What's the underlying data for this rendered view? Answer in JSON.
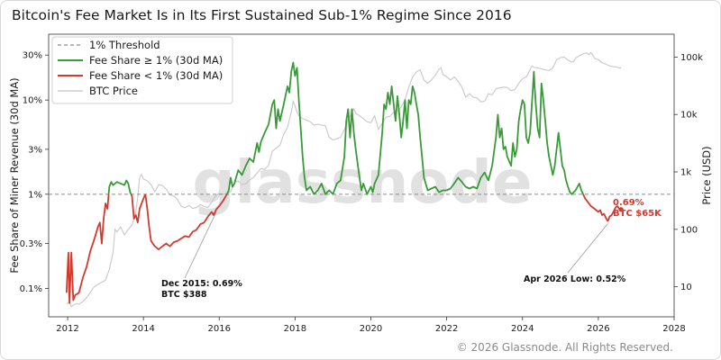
{
  "title": "Bitcoin's Fee Market Is in Its First Sustained Sub-1% Regime Since 2016",
  "footer": "© 2026 Glassnode. All Rights Reserved.",
  "watermark": "glassnode",
  "colors": {
    "green": "#3a9a3a",
    "red": "#d13a2f",
    "price": "#c8c8c8",
    "threshold": "#8c8c8c"
  },
  "chart_data": {
    "type": "line",
    "title": "Bitcoin's Fee Market Is in Its First Sustained Sub-1% Regime Since 2016",
    "xlabel": "",
    "ylabel": "Fee Share of Miner Revenue (30d MA)",
    "ylabel_right": "Price (USD)",
    "xlim": [
      2011.5,
      2028.0
    ],
    "ylim_left": [
      0.05,
      50
    ],
    "ylim_right": [
      3,
      250000
    ],
    "y_scale": "log",
    "grid": false,
    "legend_position": "top-left",
    "x_ticks": [
      "2012",
      "2014",
      "2016",
      "2018",
      "2020",
      "2022",
      "2024",
      "2026",
      "2028"
    ],
    "y_ticks_left": [
      {
        "value": 0.1,
        "label": "0.1%"
      },
      {
        "value": 0.3,
        "label": "0.3%"
      },
      {
        "value": 1,
        "label": "1%"
      },
      {
        "value": 3,
        "label": "3%"
      },
      {
        "value": 10,
        "label": "10%"
      },
      {
        "value": 30,
        "label": "30%"
      }
    ],
    "y_ticks_right": [
      {
        "value": 10,
        "label": "10"
      },
      {
        "value": 100,
        "label": "100"
      },
      {
        "value": 1000,
        "label": "1k"
      },
      {
        "value": 10000,
        "label": "10k"
      },
      {
        "value": 100000,
        "label": "100k"
      }
    ],
    "threshold": {
      "value": 1,
      "label": "1% Threshold"
    },
    "fee_share": [
      [
        2011.97,
        0.09
      ],
      [
        2012.02,
        0.24
      ],
      [
        2012.05,
        0.07
      ],
      [
        2012.1,
        0.24
      ],
      [
        2012.15,
        0.075
      ],
      [
        2012.2,
        0.085
      ],
      [
        2012.3,
        0.09
      ],
      [
        2012.4,
        0.13
      ],
      [
        2012.5,
        0.17
      ],
      [
        2012.6,
        0.25
      ],
      [
        2012.7,
        0.33
      ],
      [
        2012.8,
        0.45
      ],
      [
        2012.85,
        0.5
      ],
      [
        2012.9,
        0.3
      ],
      [
        2012.95,
        0.55
      ],
      [
        2013.0,
        0.8
      ],
      [
        2013.05,
        0.7
      ],
      [
        2013.1,
        1.2
      ],
      [
        2013.15,
        1.35
      ],
      [
        2013.2,
        1.25
      ],
      [
        2013.3,
        1.35
      ],
      [
        2013.4,
        1.3
      ],
      [
        2013.5,
        1.25
      ],
      [
        2013.55,
        1.4
      ],
      [
        2013.6,
        1.3
      ],
      [
        2013.65,
        1.05
      ],
      [
        2013.7,
        0.95
      ],
      [
        2013.75,
        0.55
      ],
      [
        2013.8,
        0.6
      ],
      [
        2013.85,
        0.5
      ],
      [
        2013.9,
        0.7
      ],
      [
        2014.0,
        0.9
      ],
      [
        2014.05,
        1.0
      ],
      [
        2014.1,
        0.7
      ],
      [
        2014.15,
        0.45
      ],
      [
        2014.2,
        0.32
      ],
      [
        2014.3,
        0.28
      ],
      [
        2014.4,
        0.26
      ],
      [
        2014.5,
        0.28
      ],
      [
        2014.6,
        0.3
      ],
      [
        2014.7,
        0.28
      ],
      [
        2014.8,
        0.31
      ],
      [
        2014.9,
        0.32
      ],
      [
        2015.0,
        0.34
      ],
      [
        2015.1,
        0.36
      ],
      [
        2015.2,
        0.35
      ],
      [
        2015.3,
        0.4
      ],
      [
        2015.4,
        0.42
      ],
      [
        2015.5,
        0.48
      ],
      [
        2015.6,
        0.5
      ],
      [
        2015.7,
        0.58
      ],
      [
        2015.8,
        0.65
      ],
      [
        2015.85,
        0.6
      ],
      [
        2015.92,
        0.69
      ],
      [
        2016.0,
        0.75
      ],
      [
        2016.1,
        0.85
      ],
      [
        2016.2,
        1.0
      ],
      [
        2016.25,
        1.1
      ],
      [
        2016.3,
        1.5
      ],
      [
        2016.35,
        1.2
      ],
      [
        2016.4,
        1.3
      ],
      [
        2016.5,
        1.8
      ],
      [
        2016.6,
        1.6
      ],
      [
        2016.7,
        2.0
      ],
      [
        2016.8,
        2.4
      ],
      [
        2016.9,
        2.2
      ],
      [
        2017.0,
        3.5
      ],
      [
        2017.05,
        2.8
      ],
      [
        2017.1,
        3.6
      ],
      [
        2017.2,
        4.5
      ],
      [
        2017.3,
        5.5
      ],
      [
        2017.4,
        9.0
      ],
      [
        2017.45,
        10.0
      ],
      [
        2017.5,
        5.0
      ],
      [
        2017.55,
        8.0
      ],
      [
        2017.6,
        6.0
      ],
      [
        2017.7,
        9.0
      ],
      [
        2017.8,
        14.0
      ],
      [
        2017.85,
        12.0
      ],
      [
        2017.9,
        20.0
      ],
      [
        2017.95,
        25.0
      ],
      [
        2018.0,
        18.0
      ],
      [
        2018.05,
        22.0
      ],
      [
        2018.1,
        10.0
      ],
      [
        2018.15,
        5.0
      ],
      [
        2018.2,
        2.5
      ],
      [
        2018.25,
        1.5
      ],
      [
        2018.3,
        1.1
      ],
      [
        2018.4,
        1.2
      ],
      [
        2018.5,
        1.0
      ],
      [
        2018.6,
        1.1
      ],
      [
        2018.7,
        1.3
      ],
      [
        2018.8,
        1.0
      ],
      [
        2018.9,
        1.1
      ],
      [
        2019.0,
        1.0
      ],
      [
        2019.1,
        1.3
      ],
      [
        2019.2,
        1.4
      ],
      [
        2019.3,
        2.5
      ],
      [
        2019.35,
        6.0
      ],
      [
        2019.4,
        8.0
      ],
      [
        2019.45,
        4.0
      ],
      [
        2019.5,
        8.0
      ],
      [
        2019.55,
        4.5
      ],
      [
        2019.6,
        3.0
      ],
      [
        2019.7,
        1.5
      ],
      [
        2019.75,
        1.1
      ],
      [
        2019.8,
        1.3
      ],
      [
        2019.9,
        1.0
      ],
      [
        2020.0,
        1.2
      ],
      [
        2020.05,
        1.05
      ],
      [
        2020.1,
        1.3
      ],
      [
        2020.2,
        1.6
      ],
      [
        2020.3,
        4.5
      ],
      [
        2020.35,
        9.0
      ],
      [
        2020.4,
        8.0
      ],
      [
        2020.45,
        12.0
      ],
      [
        2020.5,
        9.0
      ],
      [
        2020.55,
        14.0
      ],
      [
        2020.6,
        9.0
      ],
      [
        2020.65,
        6.0
      ],
      [
        2020.7,
        11.0
      ],
      [
        2020.75,
        7.0
      ],
      [
        2020.8,
        4.0
      ],
      [
        2020.85,
        6.0
      ],
      [
        2020.9,
        10.0
      ],
      [
        2020.95,
        5.0
      ],
      [
        2021.0,
        10.0
      ],
      [
        2021.05,
        9.0
      ],
      [
        2021.1,
        14.0
      ],
      [
        2021.15,
        12.0
      ],
      [
        2021.2,
        9.0
      ],
      [
        2021.25,
        7.0
      ],
      [
        2021.3,
        4.0
      ],
      [
        2021.35,
        2.5
      ],
      [
        2021.4,
        1.5
      ],
      [
        2021.5,
        1.1
      ],
      [
        2021.6,
        1.15
      ],
      [
        2021.7,
        1.2
      ],
      [
        2021.8,
        1.05
      ],
      [
        2021.9,
        1.1
      ],
      [
        2022.0,
        1.1
      ],
      [
        2022.1,
        1.15
      ],
      [
        2022.2,
        1.3
      ],
      [
        2022.3,
        1.5
      ],
      [
        2022.4,
        1.35
      ],
      [
        2022.5,
        1.2
      ],
      [
        2022.6,
        1.15
      ],
      [
        2022.7,
        1.2
      ],
      [
        2022.8,
        1.15
      ],
      [
        2022.9,
        1.5
      ],
      [
        2023.0,
        1.7
      ],
      [
        2023.1,
        1.4
      ],
      [
        2023.2,
        2.0
      ],
      [
        2023.3,
        4.0
      ],
      [
        2023.35,
        7.0
      ],
      [
        2023.4,
        4.0
      ],
      [
        2023.45,
        5.0
      ],
      [
        2023.5,
        3.0
      ],
      [
        2023.55,
        3.2
      ],
      [
        2023.6,
        2.5
      ],
      [
        2023.7,
        2.0
      ],
      [
        2023.75,
        3.5
      ],
      [
        2023.8,
        2.5
      ],
      [
        2023.85,
        3.0
      ],
      [
        2023.9,
        6.0
      ],
      [
        2023.95,
        8.0
      ],
      [
        2024.0,
        10.0
      ],
      [
        2024.05,
        9.0
      ],
      [
        2024.1,
        4.0
      ],
      [
        2024.15,
        3.5
      ],
      [
        2024.2,
        4.5
      ],
      [
        2024.3,
        20.0
      ],
      [
        2024.32,
        14.0
      ],
      [
        2024.35,
        9.0
      ],
      [
        2024.4,
        5.0
      ],
      [
        2024.45,
        4.0
      ],
      [
        2024.5,
        15.0
      ],
      [
        2024.55,
        10.0
      ],
      [
        2024.6,
        6.0
      ],
      [
        2024.65,
        3.5
      ],
      [
        2024.7,
        2.5
      ],
      [
        2024.75,
        2.0
      ],
      [
        2024.8,
        1.6
      ],
      [
        2024.85,
        2.0
      ],
      [
        2024.9,
        3.0
      ],
      [
        2024.95,
        4.5
      ],
      [
        2025.0,
        3.0
      ],
      [
        2025.05,
        2.0
      ],
      [
        2025.1,
        1.8
      ],
      [
        2025.15,
        1.4
      ],
      [
        2025.2,
        1.2
      ],
      [
        2025.25,
        1.05
      ],
      [
        2025.3,
        1.0
      ],
      [
        2025.4,
        1.1
      ],
      [
        2025.5,
        1.3
      ],
      [
        2025.55,
        1.1
      ],
      [
        2025.6,
        1.0
      ],
      [
        2025.65,
        0.9
      ],
      [
        2025.7,
        0.85
      ],
      [
        2025.8,
        0.75
      ],
      [
        2025.9,
        0.7
      ],
      [
        2026.0,
        0.65
      ],
      [
        2026.05,
        0.68
      ],
      [
        2026.1,
        0.6
      ],
      [
        2026.15,
        0.62
      ],
      [
        2026.2,
        0.56
      ],
      [
        2026.25,
        0.52
      ],
      [
        2026.3,
        0.58
      ],
      [
        2026.35,
        0.6
      ],
      [
        2026.4,
        0.65
      ],
      [
        2026.45,
        0.72
      ],
      [
        2026.5,
        0.75
      ],
      [
        2026.55,
        0.7
      ],
      [
        2026.6,
        0.69
      ]
    ],
    "btc_price": [
      [
        2011.97,
        5
      ],
      [
        2012.05,
        5.5
      ],
      [
        2012.1,
        4.5
      ],
      [
        2012.2,
        5
      ],
      [
        2012.3,
        5
      ],
      [
        2012.4,
        5.5
      ],
      [
        2012.5,
        6.5
      ],
      [
        2012.6,
        8
      ],
      [
        2012.7,
        10
      ],
      [
        2012.8,
        11
      ],
      [
        2012.9,
        12
      ],
      [
        2013.0,
        13
      ],
      [
        2013.1,
        20
      ],
      [
        2013.2,
        40
      ],
      [
        2013.25,
        100
      ],
      [
        2013.3,
        90
      ],
      [
        2013.4,
        110
      ],
      [
        2013.5,
        80
      ],
      [
        2013.6,
        100
      ],
      [
        2013.7,
        120
      ],
      [
        2013.8,
        200
      ],
      [
        2013.85,
        350
      ],
      [
        2013.9,
        800
      ],
      [
        2013.95,
        900
      ],
      [
        2014.0,
        750
      ],
      [
        2014.1,
        700
      ],
      [
        2014.2,
        600
      ],
      [
        2014.3,
        450
      ],
      [
        2014.4,
        600
      ],
      [
        2014.5,
        580
      ],
      [
        2014.6,
        500
      ],
      [
        2014.7,
        400
      ],
      [
        2014.8,
        380
      ],
      [
        2014.9,
        330
      ],
      [
        2015.0,
        250
      ],
      [
        2015.1,
        240
      ],
      [
        2015.2,
        260
      ],
      [
        2015.3,
        230
      ],
      [
        2015.4,
        240
      ],
      [
        2015.5,
        270
      ],
      [
        2015.6,
        250
      ],
      [
        2015.7,
        240
      ],
      [
        2015.8,
        300
      ],
      [
        2015.9,
        380
      ],
      [
        2016.0,
        420
      ],
      [
        2016.1,
        410
      ],
      [
        2016.2,
        420
      ],
      [
        2016.3,
        450
      ],
      [
        2016.4,
        650
      ],
      [
        2016.5,
        700
      ],
      [
        2016.6,
        600
      ],
      [
        2016.7,
        620
      ],
      [
        2016.8,
        720
      ],
      [
        2016.9,
        800
      ],
      [
        2017.0,
        950
      ],
      [
        2017.1,
        1150
      ],
      [
        2017.2,
        1100
      ],
      [
        2017.3,
        1300
      ],
      [
        2017.4,
        2300
      ],
      [
        2017.5,
        2600
      ],
      [
        2017.6,
        2900
      ],
      [
        2017.7,
        4500
      ],
      [
        2017.8,
        6000
      ],
      [
        2017.9,
        11000
      ],
      [
        2017.95,
        17000
      ],
      [
        2018.0,
        14000
      ],
      [
        2018.05,
        11000
      ],
      [
        2018.1,
        9500
      ],
      [
        2018.2,
        8500
      ],
      [
        2018.3,
        8000
      ],
      [
        2018.4,
        7500
      ],
      [
        2018.5,
        6500
      ],
      [
        2018.6,
        6800
      ],
      [
        2018.7,
        6500
      ],
      [
        2018.8,
        6400
      ],
      [
        2018.9,
        4000
      ],
      [
        2019.0,
        3600
      ],
      [
        2019.1,
        3800
      ],
      [
        2019.2,
        4000
      ],
      [
        2019.3,
        5500
      ],
      [
        2019.4,
        8000
      ],
      [
        2019.5,
        11000
      ],
      [
        2019.55,
        12500
      ],
      [
        2019.6,
        10500
      ],
      [
        2019.7,
        9500
      ],
      [
        2019.8,
        8500
      ],
      [
        2019.9,
        7500
      ],
      [
        2020.0,
        7200
      ],
      [
        2020.1,
        9500
      ],
      [
        2020.2,
        5500
      ],
      [
        2020.3,
        7000
      ],
      [
        2020.4,
        9000
      ],
      [
        2020.5,
        9300
      ],
      [
        2020.6,
        11000
      ],
      [
        2020.7,
        11500
      ],
      [
        2020.8,
        13500
      ],
      [
        2020.9,
        18000
      ],
      [
        2021.0,
        30000
      ],
      [
        2021.1,
        45000
      ],
      [
        2021.2,
        55000
      ],
      [
        2021.3,
        60000
      ],
      [
        2021.4,
        40000
      ],
      [
        2021.5,
        35000
      ],
      [
        2021.6,
        40000
      ],
      [
        2021.7,
        48000
      ],
      [
        2021.8,
        62000
      ],
      [
        2021.85,
        65000
      ],
      [
        2021.9,
        50000
      ],
      [
        2022.0,
        45000
      ],
      [
        2022.1,
        40000
      ],
      [
        2022.2,
        45000
      ],
      [
        2022.3,
        38000
      ],
      [
        2022.4,
        30000
      ],
      [
        2022.5,
        20000
      ],
      [
        2022.6,
        23000
      ],
      [
        2022.7,
        20000
      ],
      [
        2022.8,
        19500
      ],
      [
        2022.9,
        16500
      ],
      [
        2023.0,
        17000
      ],
      [
        2023.1,
        23000
      ],
      [
        2023.2,
        22000
      ],
      [
        2023.3,
        28000
      ],
      [
        2023.4,
        29000
      ],
      [
        2023.5,
        30000
      ],
      [
        2023.6,
        29500
      ],
      [
        2023.7,
        26000
      ],
      [
        2023.8,
        27000
      ],
      [
        2023.9,
        35000
      ],
      [
        2024.0,
        42000
      ],
      [
        2024.1,
        45000
      ],
      [
        2024.2,
        60000
      ],
      [
        2024.25,
        70000
      ],
      [
        2024.3,
        66000
      ],
      [
        2024.4,
        65000
      ],
      [
        2024.5,
        62000
      ],
      [
        2024.6,
        60000
      ],
      [
        2024.7,
        58000
      ],
      [
        2024.8,
        65000
      ],
      [
        2024.9,
        90000
      ],
      [
        2025.0,
        98000
      ],
      [
        2025.1,
        100000
      ],
      [
        2025.2,
        88000
      ],
      [
        2025.3,
        82000
      ],
      [
        2025.35,
        84000
      ],
      [
        2025.4,
        95000
      ],
      [
        2025.5,
        105000
      ],
      [
        2025.6,
        115000
      ],
      [
        2025.7,
        118000
      ],
      [
        2025.75,
        110000
      ],
      [
        2025.8,
        120000
      ],
      [
        2025.85,
        110000
      ],
      [
        2025.9,
        95000
      ],
      [
        2026.0,
        90000
      ],
      [
        2026.1,
        80000
      ],
      [
        2026.2,
        75000
      ],
      [
        2026.3,
        70000
      ],
      [
        2026.4,
        68000
      ],
      [
        2026.5,
        67000
      ],
      [
        2026.55,
        64000
      ],
      [
        2026.6,
        65000
      ]
    ],
    "legend": [
      {
        "label": "1% Threshold",
        "style": "dashed"
      },
      {
        "label": "Fee Share ≥ 1% (30d MA)",
        "style": "green"
      },
      {
        "label": "Fee Share < 1% (30d MA)",
        "style": "red"
      },
      {
        "label": "BTC Price",
        "style": "price"
      }
    ],
    "annotations": [
      {
        "id": "dec2015",
        "line1": "Dec 2015: 0.69%",
        "line2": "BTC $388",
        "point": [
          2015.92,
          0.69
        ]
      },
      {
        "id": "apr2026",
        "line1": "Apr 2026 Low: 0.52%",
        "point": [
          2026.25,
          0.52
        ]
      },
      {
        "id": "current",
        "line1": "0.69%",
        "line2": "BTC $65K",
        "point": [
          2026.6,
          0.69
        ]
      }
    ]
  }
}
